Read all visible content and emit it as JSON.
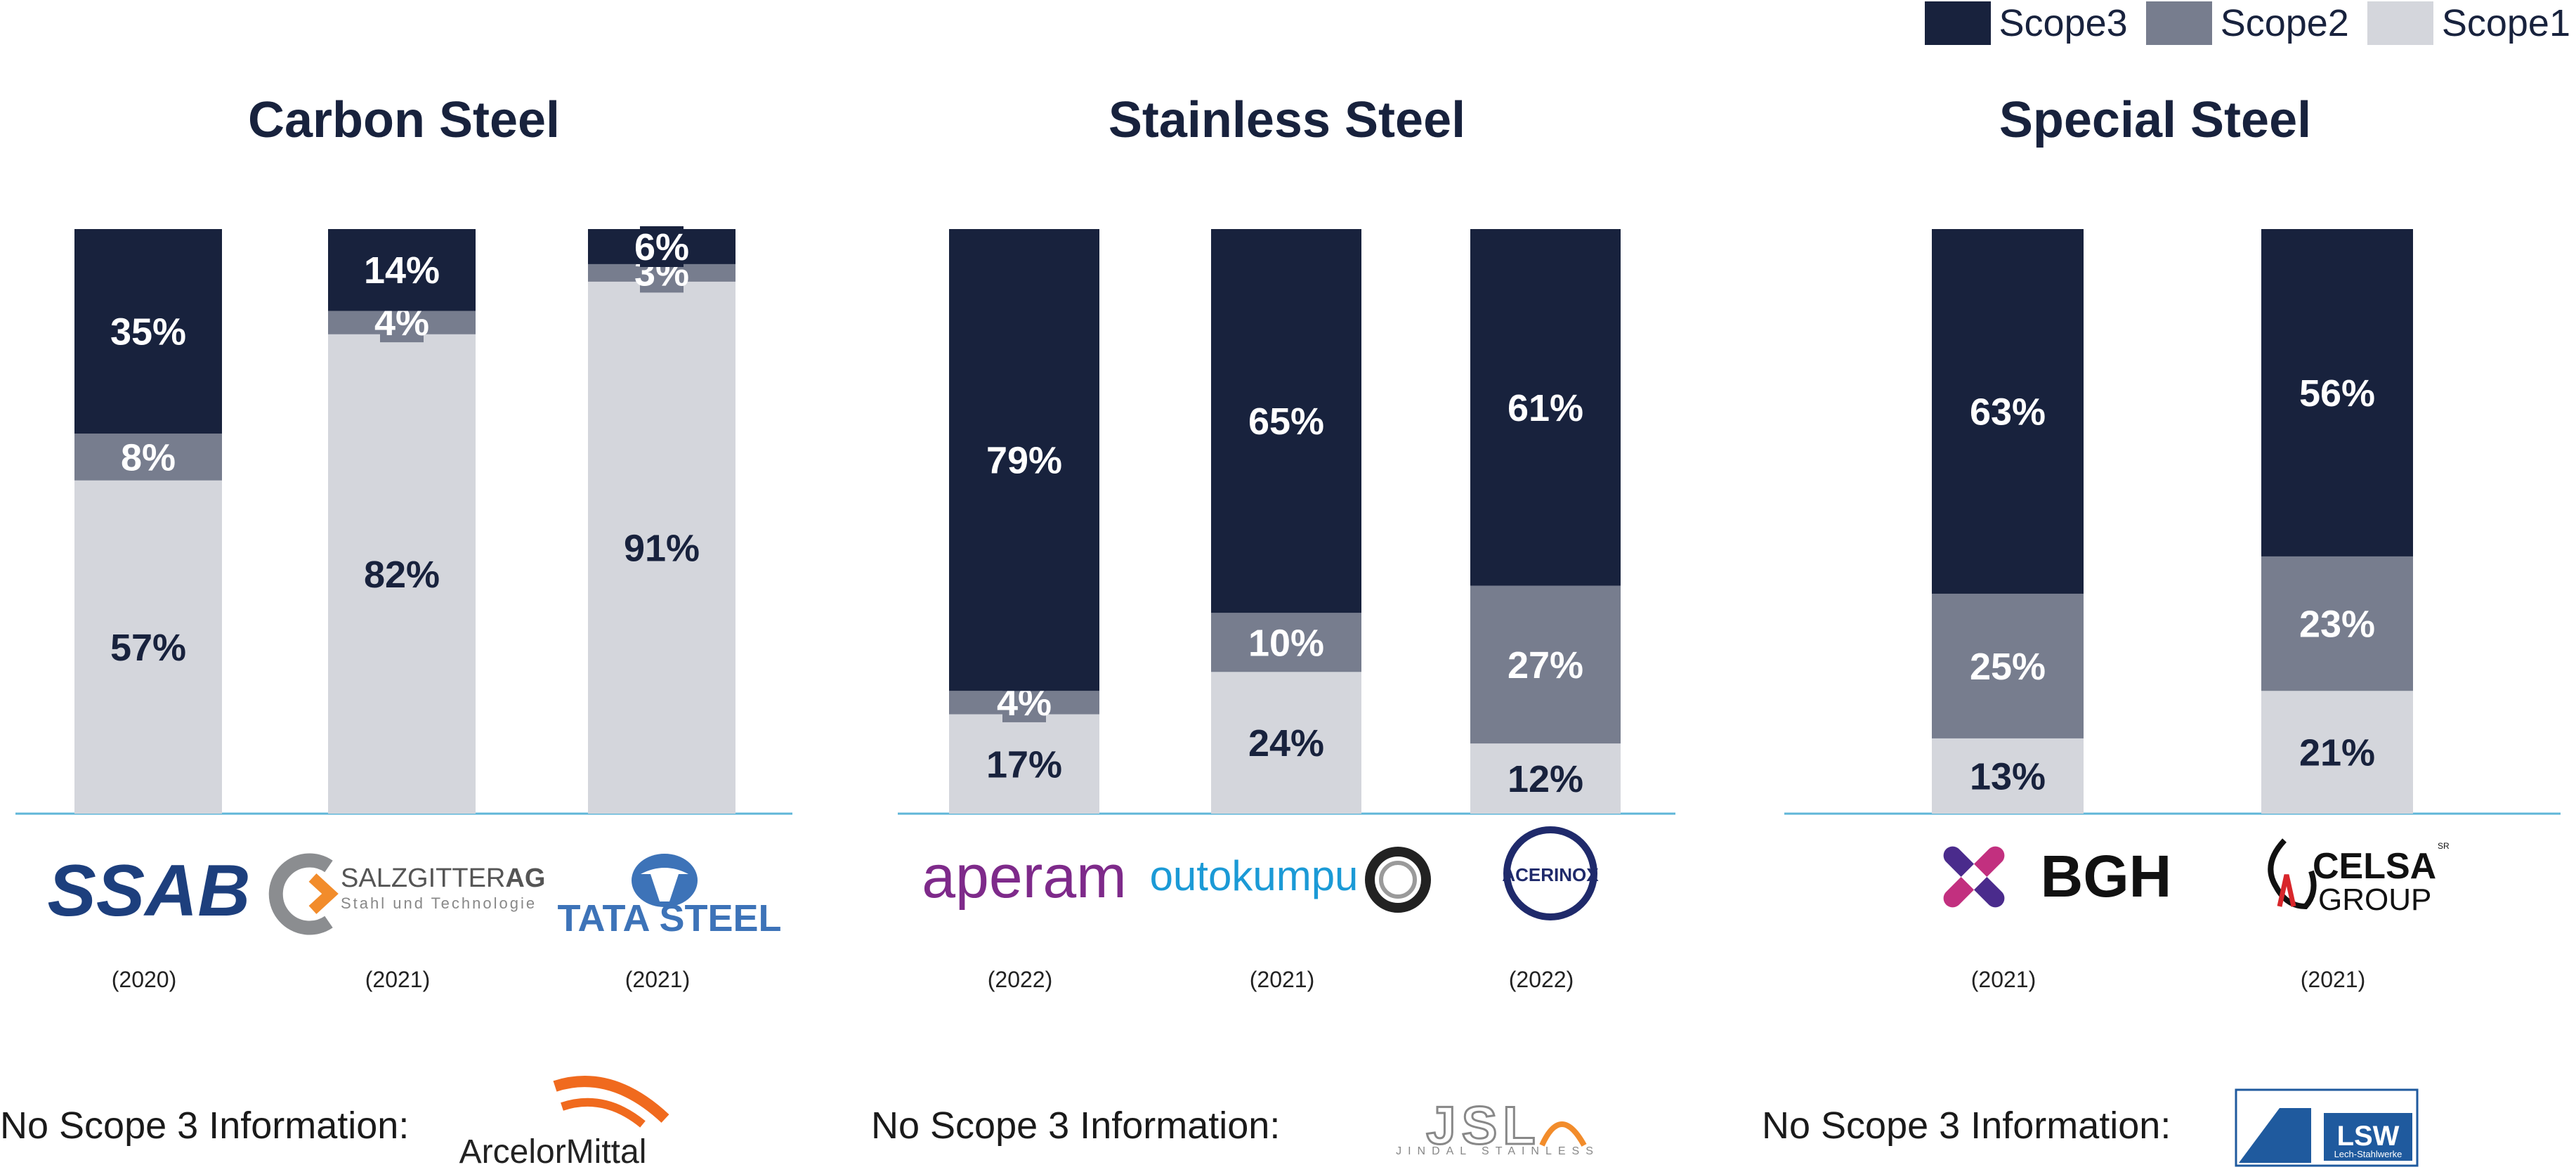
{
  "legend": {
    "scope3": "Scope3",
    "scope2": "Scope2",
    "scope1": "Scope1"
  },
  "colors": {
    "scope3": "#18223d",
    "scope2": "#777d8e",
    "scope1": "#d4d6dc",
    "baseline": "#5fb6d8",
    "text_dark": "#18223d",
    "label_light": "#ffffff"
  },
  "no_scope3_label": "No Scope 3 Information:",
  "chart_data": [
    {
      "type": "bar",
      "stacked": true,
      "title": "Carbon Steel",
      "series_order": [
        "Scope1",
        "Scope2",
        "Scope3"
      ],
      "categories": [
        "SSAB",
        "SALZGITTER AG",
        "TATA STEEL"
      ],
      "years": [
        "(2020)",
        "(2021)",
        "(2021)"
      ],
      "series": [
        {
          "name": "Scope1",
          "values": [
            57,
            82,
            91
          ]
        },
        {
          "name": "Scope2",
          "values": [
            8,
            4,
            3
          ]
        },
        {
          "name": "Scope3",
          "values": [
            35,
            14,
            6
          ]
        }
      ],
      "labels": {
        "Scope1": [
          "57%",
          "82%",
          "91%"
        ],
        "Scope2": [
          "8%",
          "4%",
          "3%"
        ],
        "Scope3": [
          "35%",
          "14%",
          "6%"
        ]
      },
      "ylim": [
        0,
        100
      ],
      "no_scope3_company": "ArcelorMittal"
    },
    {
      "type": "bar",
      "stacked": true,
      "title": "Stainless Steel",
      "series_order": [
        "Scope1",
        "Scope2",
        "Scope3"
      ],
      "categories": [
        "aperam",
        "outokumpu",
        "ACERINOX"
      ],
      "years": [
        "(2022)",
        "(2021)",
        "(2022)"
      ],
      "series": [
        {
          "name": "Scope1",
          "values": [
            17,
            24,
            12
          ]
        },
        {
          "name": "Scope2",
          "values": [
            4,
            10,
            27
          ]
        },
        {
          "name": "Scope3",
          "values": [
            79,
            65,
            61
          ]
        }
      ],
      "labels": {
        "Scope1": [
          "17%",
          "24%",
          "12%"
        ],
        "Scope2": [
          "4%",
          "10%",
          "27%"
        ],
        "Scope3": [
          "79%",
          "65%",
          "61%"
        ]
      },
      "ylim": [
        0,
        100
      ],
      "no_scope3_company": "JSL",
      "no_scope3_company_sub": "JINDAL STAINLESS"
    },
    {
      "type": "bar",
      "stacked": true,
      "title": "Special Steel",
      "series_order": [
        "Scope1",
        "Scope2",
        "Scope3"
      ],
      "categories": [
        "BGH",
        "CELSA GROUP"
      ],
      "years": [
        "(2021)",
        "(2021)"
      ],
      "series": [
        {
          "name": "Scope1",
          "values": [
            13,
            21
          ]
        },
        {
          "name": "Scope2",
          "values": [
            25,
            23
          ]
        },
        {
          "name": "Scope3",
          "values": [
            63,
            56
          ]
        }
      ],
      "labels": {
        "Scope1": [
          "13%",
          "21%"
        ],
        "Scope2": [
          "25%",
          "23%"
        ],
        "Scope3": [
          "63%",
          "56%"
        ]
      },
      "ylim": [
        0,
        100
      ],
      "no_scope3_company": "LSW",
      "no_scope3_company_sub": "Lech-Stahlwerke"
    }
  ],
  "logos": {
    "ssab": "SSAB",
    "salzgitter_main": "SALZGITTER",
    "salzgitter_ag": "AG",
    "salzgitter_sub": "Stahl und Technologie",
    "tata": "TATA STEEL",
    "aperam": "aperam",
    "outokumpu": "outokumpu",
    "acerinox": "ACERINOX",
    "bgh": "BGH",
    "celsa_main": "CELSA",
    "celsa_sub": "GROUP",
    "celsa_mark": "SR",
    "arcelor": "ArcelorMittal",
    "jsl": "JSL",
    "jsl_sub": "JINDAL STAINLESS",
    "lsw": "LSW",
    "lsw_sub": "Lech-Stahlwerke"
  }
}
